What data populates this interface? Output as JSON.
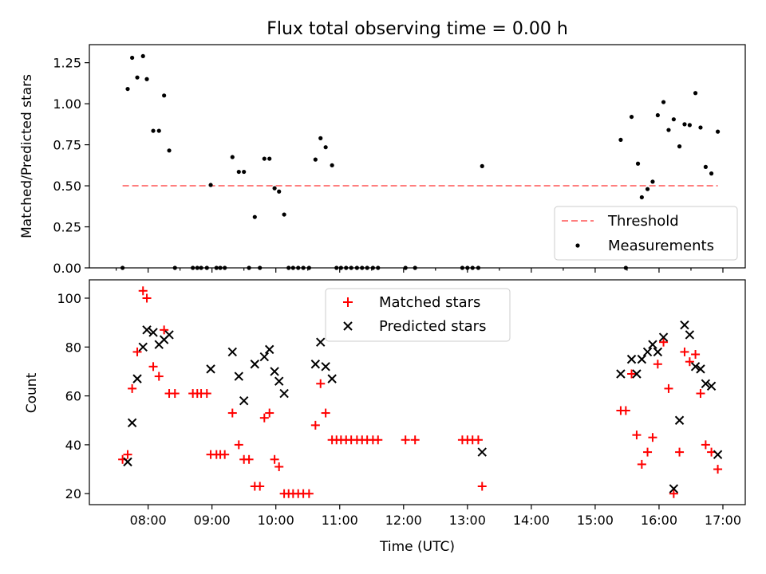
{
  "chart_data": [
    {
      "type": "scatter",
      "title": "Flux total observing time = 0.00 h",
      "xlabel": "",
      "ylabel": "Matched/Predicted stars",
      "xlim_hours": [
        7.08,
        17.35
      ],
      "ylim": [
        0,
        1.36
      ],
      "yticks": [
        0.0,
        0.25,
        0.5,
        0.75,
        1.0,
        1.25
      ],
      "ytick_labels": [
        "0.00",
        "0.25",
        "0.50",
        "0.75",
        "1.00",
        "1.25"
      ],
      "threshold": {
        "name": "Threshold",
        "value": 0.5,
        "x_range": [
          7.6,
          16.92
        ],
        "color": "#ff7f7f"
      },
      "series": [
        {
          "name": "Measurements",
          "color": "#000000",
          "marker": "dot",
          "points": [
            [
              7.6,
              0
            ],
            [
              7.68,
              1.09
            ],
            [
              7.75,
              1.28
            ],
            [
              7.83,
              1.16
            ],
            [
              7.92,
              1.29
            ],
            [
              7.98,
              1.15
            ],
            [
              8.08,
              0.835
            ],
            [
              8.17,
              0.835
            ],
            [
              8.25,
              1.05
            ],
            [
              8.33,
              0.715
            ],
            [
              8.42,
              0
            ],
            [
              8.7,
              0
            ],
            [
              8.77,
              0
            ],
            [
              8.83,
              0
            ],
            [
              8.92,
              0
            ],
            [
              8.98,
              0.505
            ],
            [
              9.07,
              0
            ],
            [
              9.13,
              0
            ],
            [
              9.2,
              0
            ],
            [
              9.32,
              0.675
            ],
            [
              9.42,
              0.585
            ],
            [
              9.5,
              0.585
            ],
            [
              9.58,
              0
            ],
            [
              9.67,
              0.31
            ],
            [
              9.75,
              0
            ],
            [
              9.82,
              0.665
            ],
            [
              9.9,
              0.665
            ],
            [
              9.98,
              0.485
            ],
            [
              10.05,
              0.465
            ],
            [
              10.13,
              0.325
            ],
            [
              10.2,
              0
            ],
            [
              10.27,
              0
            ],
            [
              10.35,
              0
            ],
            [
              10.43,
              0
            ],
            [
              10.52,
              0
            ],
            [
              10.62,
              0.66
            ],
            [
              10.7,
              0.79
            ],
            [
              10.78,
              0.735
            ],
            [
              10.88,
              0.625
            ],
            [
              10.95,
              0
            ],
            [
              11.02,
              0
            ],
            [
              11.1,
              0
            ],
            [
              11.18,
              0
            ],
            [
              11.27,
              0
            ],
            [
              11.35,
              0
            ],
            [
              11.43,
              0
            ],
            [
              11.52,
              0
            ],
            [
              11.6,
              0
            ],
            [
              12.03,
              0
            ],
            [
              12.18,
              0
            ],
            [
              12.92,
              0
            ],
            [
              13.0,
              0
            ],
            [
              13.08,
              0
            ],
            [
              13.17,
              0
            ],
            [
              13.23,
              0.62
            ],
            [
              15.4,
              0.78
            ],
            [
              15.48,
              0
            ],
            [
              15.57,
              0.92
            ],
            [
              15.67,
              0.635
            ],
            [
              15.73,
              0.43
            ],
            [
              15.82,
              0.48
            ],
            [
              15.9,
              0.525
            ],
            [
              15.98,
              0.93
            ],
            [
              16.07,
              1.01
            ],
            [
              16.15,
              0.84
            ],
            [
              16.23,
              0.905
            ],
            [
              16.32,
              0.74
            ],
            [
              16.4,
              0.875
            ],
            [
              16.48,
              0.87
            ],
            [
              16.57,
              1.065
            ],
            [
              16.65,
              0.855
            ],
            [
              16.73,
              0.615
            ],
            [
              16.82,
              0.575
            ],
            [
              16.92,
              0.83
            ]
          ]
        }
      ],
      "legend": {
        "placement": "lower-right",
        "entries": [
          "Threshold",
          "Measurements"
        ]
      }
    },
    {
      "type": "scatter",
      "title": "",
      "xlabel": "Time (UTC)",
      "ylabel": "Count",
      "xlim_hours": [
        7.08,
        17.35
      ],
      "ylim": [
        15.5,
        107.5
      ],
      "yticks": [
        20,
        40,
        60,
        80,
        100
      ],
      "ytick_labels": [
        "20",
        "40",
        "60",
        "80",
        "100"
      ],
      "xticks_hours": [
        8,
        9,
        10,
        11,
        12,
        13,
        14,
        15,
        16,
        17
      ],
      "xtick_labels": [
        "08:00",
        "09:00",
        "10:00",
        "11:00",
        "12:00",
        "13:00",
        "14:00",
        "15:00",
        "16:00",
        "17:00"
      ],
      "series": [
        {
          "name": "Matched stars",
          "color": "#ff0000",
          "marker": "plus",
          "points": [
            [
              7.6,
              34
            ],
            [
              7.68,
              36
            ],
            [
              7.75,
              63
            ],
            [
              7.83,
              78
            ],
            [
              7.92,
              103
            ],
            [
              7.98,
              100
            ],
            [
              8.08,
              72
            ],
            [
              8.17,
              68
            ],
            [
              8.25,
              87
            ],
            [
              8.33,
              61
            ],
            [
              8.42,
              61
            ],
            [
              8.7,
              61
            ],
            [
              8.77,
              61
            ],
            [
              8.83,
              61
            ],
            [
              8.92,
              61
            ],
            [
              8.98,
              36
            ],
            [
              9.07,
              36
            ],
            [
              9.13,
              36
            ],
            [
              9.2,
              36
            ],
            [
              9.32,
              53
            ],
            [
              9.42,
              40
            ],
            [
              9.5,
              34
            ],
            [
              9.58,
              34
            ],
            [
              9.67,
              23
            ],
            [
              9.75,
              23
            ],
            [
              9.82,
              51
            ],
            [
              9.9,
              53
            ],
            [
              9.98,
              34
            ],
            [
              10.05,
              31
            ],
            [
              10.13,
              20
            ],
            [
              10.2,
              20
            ],
            [
              10.27,
              20
            ],
            [
              10.35,
              20
            ],
            [
              10.43,
              20
            ],
            [
              10.52,
              20
            ],
            [
              10.62,
              48
            ],
            [
              10.7,
              65
            ],
            [
              10.78,
              53
            ],
            [
              10.88,
              42
            ],
            [
              10.95,
              42
            ],
            [
              11.02,
              42
            ],
            [
              11.1,
              42
            ],
            [
              11.18,
              42
            ],
            [
              11.27,
              42
            ],
            [
              11.35,
              42
            ],
            [
              11.43,
              42
            ],
            [
              11.52,
              42
            ],
            [
              11.6,
              42
            ],
            [
              12.03,
              42
            ],
            [
              12.18,
              42
            ],
            [
              12.92,
              42
            ],
            [
              13.0,
              42
            ],
            [
              13.08,
              42
            ],
            [
              13.17,
              42
            ],
            [
              13.23,
              23
            ],
            [
              15.4,
              54
            ],
            [
              15.48,
              54
            ],
            [
              15.57,
              69
            ],
            [
              15.65,
              44
            ],
            [
              15.73,
              32
            ],
            [
              15.82,
              37
            ],
            [
              15.9,
              43
            ],
            [
              15.98,
              73
            ],
            [
              16.07,
              82
            ],
            [
              16.15,
              63
            ],
            [
              16.23,
              20
            ],
            [
              16.32,
              37
            ],
            [
              16.4,
              78
            ],
            [
              16.48,
              74
            ],
            [
              16.57,
              77
            ],
            [
              16.65,
              61
            ],
            [
              16.73,
              40
            ],
            [
              16.82,
              37
            ],
            [
              16.92,
              30
            ]
          ]
        },
        {
          "name": "Predicted stars",
          "color": "#000000",
          "marker": "cross",
          "points": [
            [
              7.68,
              33
            ],
            [
              7.75,
              49
            ],
            [
              7.83,
              67
            ],
            [
              7.92,
              80
            ],
            [
              7.98,
              87
            ],
            [
              8.08,
              86
            ],
            [
              8.17,
              81
            ],
            [
              8.25,
              83
            ],
            [
              8.33,
              85
            ],
            [
              8.98,
              71
            ],
            [
              9.32,
              78
            ],
            [
              9.42,
              68
            ],
            [
              9.5,
              58
            ],
            [
              9.67,
              73
            ],
            [
              9.82,
              76
            ],
            [
              9.9,
              79
            ],
            [
              9.98,
              70
            ],
            [
              10.05,
              66
            ],
            [
              10.13,
              61
            ],
            [
              10.62,
              73
            ],
            [
              10.7,
              82
            ],
            [
              10.78,
              72
            ],
            [
              10.88,
              67
            ],
            [
              13.23,
              37
            ],
            [
              15.4,
              69
            ],
            [
              15.57,
              75
            ],
            [
              15.65,
              69
            ],
            [
              15.73,
              75
            ],
            [
              15.82,
              78
            ],
            [
              15.9,
              81
            ],
            [
              15.98,
              78
            ],
            [
              16.07,
              84
            ],
            [
              16.23,
              22
            ],
            [
              16.32,
              50
            ],
            [
              16.4,
              89
            ],
            [
              16.48,
              85
            ],
            [
              16.57,
              72
            ],
            [
              16.65,
              71
            ],
            [
              16.73,
              65
            ],
            [
              16.82,
              64
            ],
            [
              16.92,
              36
            ]
          ]
        }
      ],
      "legend": {
        "placement": "upper-center",
        "entries": [
          "Matched stars",
          "Predicted stars"
        ]
      }
    }
  ]
}
